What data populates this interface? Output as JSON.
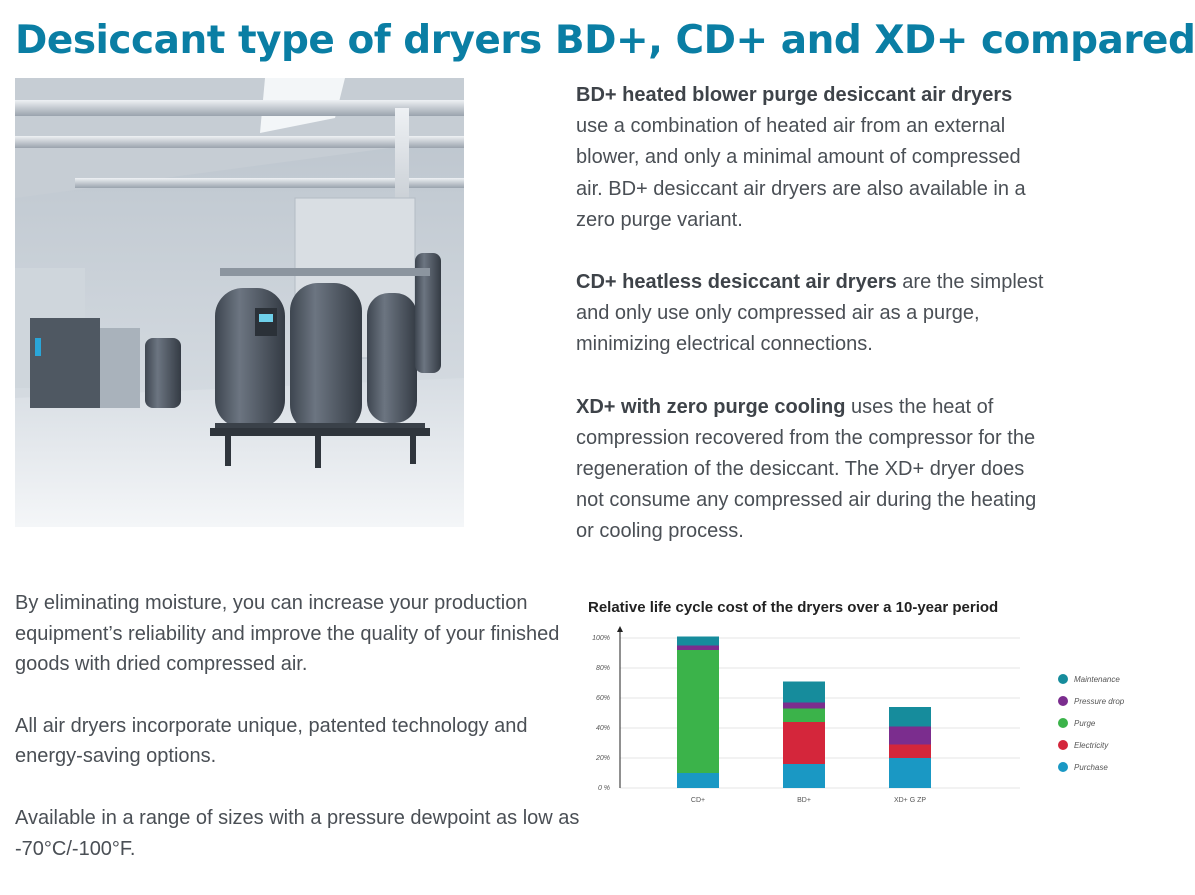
{
  "page": {
    "title": "Desiccant type of dryers BD+, CD+ and XD+ compared"
  },
  "right_column": {
    "p1_bold": "BD+ heated blower purge desiccant air dryers",
    "p1_text": " use a combination of heated air from an external blower, and only a minimal amount of compressed air. BD+ desiccant air dryers are also available in a zero purge variant.",
    "p2_bold": "CD+ heatless desiccant air dryers",
    "p2_text": " are the simplest and only use only compressed air as a purge, minimizing electrical connections.",
    "p3_bold": "XD+ with zero purge cooling",
    "p3_text": " uses the heat of compression recovered from the compressor for the regeneration of the desiccant. The XD+ dryer does not consume any compressed air during the heating or cooling process."
  },
  "left_column": {
    "p1": "By eliminating moisture, you can increase your production equipment’s reliability and improve the quality of your finished goods with dried compressed air.",
    "p2": "All air dryers incorporate unique, patented technology and energy-saving options.",
    "p3": "Available in a range of sizes with a pressure dewpoint as low as -70°C/-100°F."
  },
  "chart_data": {
    "type": "bar",
    "stacked": true,
    "title": "Relative life cycle cost of the dryers over a 10-year period",
    "categories": [
      "CD+",
      "BD+",
      "XD+ G ZP"
    ],
    "ylim": [
      0,
      100
    ],
    "yticks": [
      "0 %",
      "20%",
      "40%",
      "60%",
      "80%",
      "100%"
    ],
    "series": [
      {
        "name": "Purchase",
        "color": "#1a98c4",
        "values": [
          10,
          16,
          20
        ]
      },
      {
        "name": "Electricity",
        "color": "#d4263b",
        "values": [
          0,
          28,
          9
        ]
      },
      {
        "name": "Purge",
        "color": "#3bb34a",
        "values": [
          82,
          9,
          0
        ]
      },
      {
        "name": "Pressure drop",
        "color": "#7b2d8e",
        "values": [
          3,
          4,
          12
        ]
      },
      {
        "name": "Maintenance",
        "color": "#168c9c",
        "values": [
          6,
          14,
          13
        ]
      }
    ],
    "legend_order": [
      "Maintenance",
      "Pressure drop",
      "Purge",
      "Electricity",
      "Purchase"
    ],
    "grid": true,
    "legend_position": "right"
  }
}
